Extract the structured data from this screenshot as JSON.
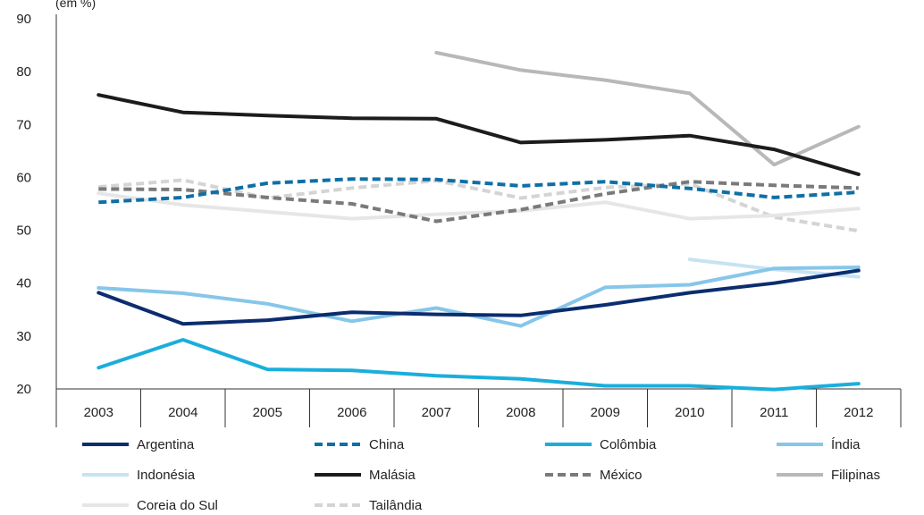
{
  "chart_data": {
    "type": "line",
    "ylabel": "(em %)",
    "ylim": [
      20,
      90
    ],
    "yticks": [
      20,
      30,
      40,
      50,
      60,
      70,
      80,
      90
    ],
    "x": [
      "2003",
      "2004",
      "2005",
      "2006",
      "2007",
      "2008",
      "2009",
      "2010",
      "2011",
      "2012"
    ],
    "grid": false,
    "legend_position": "bottom",
    "series": [
      {
        "name": "Argentina",
        "color": "#0b2d6e",
        "dash": "solid",
        "values": [
          38.2,
          32.3,
          33.0,
          34.5,
          34.1,
          33.9,
          35.9,
          38.2,
          40.0,
          42.4
        ]
      },
      {
        "name": "China",
        "color": "#0f6fa6",
        "dash": "dashed",
        "values": [
          55.3,
          56.2,
          58.9,
          59.7,
          59.6,
          58.4,
          59.2,
          57.9,
          56.2,
          57.2
        ]
      },
      {
        "name": "Colômbia",
        "color": "#1aaedc",
        "dash": "solid",
        "values": [
          24.0,
          29.3,
          23.7,
          23.5,
          22.5,
          21.9,
          20.6,
          20.6,
          19.9,
          21.0
        ]
      },
      {
        "name": "Índia",
        "color": "#86c6e9",
        "dash": "solid",
        "values": [
          39.1,
          38.1,
          36.1,
          32.8,
          35.3,
          31.9,
          39.2,
          39.7,
          42.8,
          43.0
        ]
      },
      {
        "name": "Indonésia",
        "color": "#c6e3f3",
        "dash": "solid",
        "values": [
          null,
          null,
          null,
          null,
          null,
          null,
          null,
          44.5,
          42.6,
          41.2
        ]
      },
      {
        "name": "Malásia",
        "color": "#1c1c1c",
        "dash": "solid",
        "values": [
          75.6,
          72.3,
          71.7,
          71.2,
          71.1,
          66.6,
          67.1,
          67.9,
          65.3,
          60.6
        ]
      },
      {
        "name": "México",
        "color": "#7a7a7a",
        "dash": "dashed",
        "values": [
          57.8,
          57.7,
          56.2,
          55.0,
          51.7,
          53.9,
          56.9,
          59.2,
          58.5,
          58.0
        ]
      },
      {
        "name": "Filipinas",
        "color": "#b8b8b8",
        "dash": "solid",
        "values": [
          null,
          null,
          null,
          null,
          83.6,
          80.3,
          78.4,
          75.9,
          62.4,
          69.6
        ]
      },
      {
        "name": "Coreia do Sul",
        "color": "#e6e6e6",
        "dash": "solid",
        "values": [
          57.0,
          54.8,
          53.5,
          52.2,
          53.0,
          53.7,
          55.3,
          52.2,
          52.8,
          54.1
        ]
      },
      {
        "name": "Tailândia",
        "color": "#d4d4d4",
        "dash": "dashed",
        "values": [
          58.2,
          59.5,
          56.1,
          58.0,
          59.4,
          56.1,
          58.1,
          58.8,
          52.5,
          49.9
        ]
      }
    ]
  }
}
